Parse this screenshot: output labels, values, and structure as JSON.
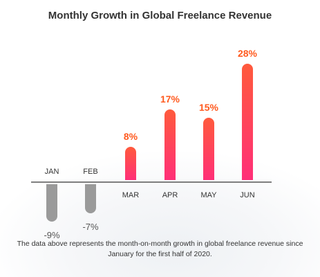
{
  "title": "Monthly Growth in Global Freelance Revenue",
  "footnote": "The data above represents the month-on-month growth in global freelance revenue since January for the first half of 2020.",
  "colors": {
    "positive_top": "#ff5a3c",
    "positive_bottom": "#ff2f78",
    "positive_label": "#ff5a1f",
    "negative_bar": "#9a9a9a",
    "negative_label": "#555555",
    "month_label": "#333333",
    "baseline": "#555555"
  },
  "chart_data": {
    "type": "bar",
    "categories": [
      "JAN",
      "FEB",
      "MAR",
      "APR",
      "MAY",
      "JUN"
    ],
    "values": [
      -9,
      -7,
      8,
      17,
      15,
      28
    ],
    "value_labels": [
      "-9%",
      "-7%",
      "8%",
      "17%",
      "15%",
      "28%"
    ],
    "title": "Monthly Growth in Global Freelance Revenue",
    "xlabel": "",
    "ylabel": "",
    "ylim": [
      -10,
      30
    ],
    "grid": false,
    "legend": "none"
  }
}
